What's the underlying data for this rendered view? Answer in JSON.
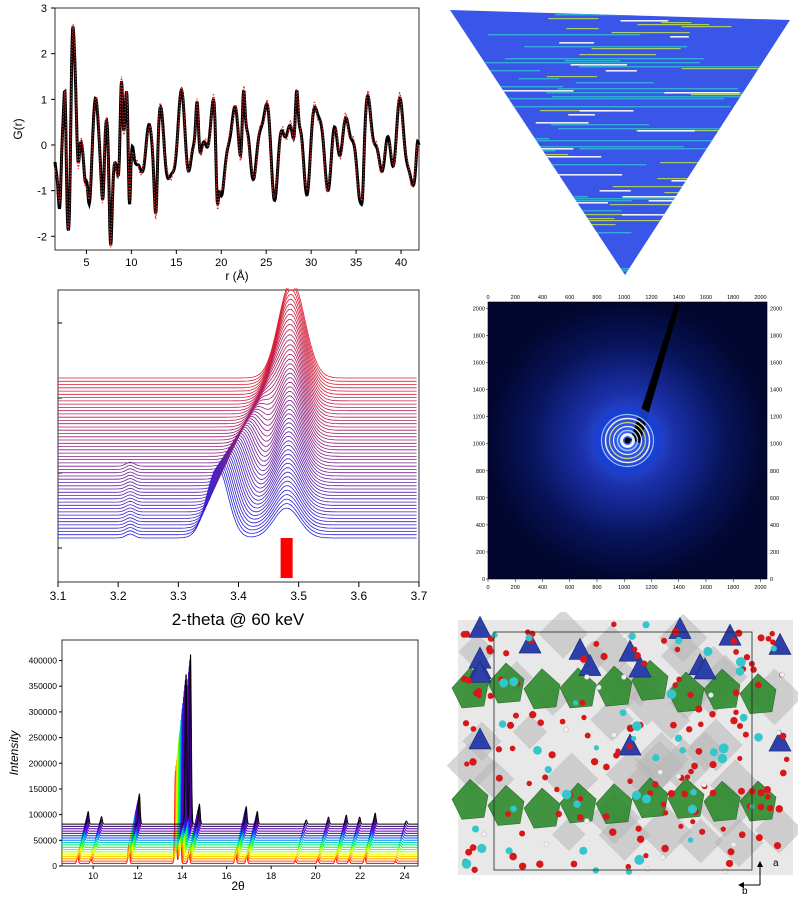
{
  "chart_data": [
    {
      "type": "line",
      "xlabel": "r (Å)",
      "ylabel": "G(r)",
      "xlim": [
        1.5,
        42
      ],
      "ylim": [
        -2.3,
        3
      ],
      "xticks": [
        5,
        10,
        15,
        20,
        25,
        30,
        35,
        40
      ],
      "yticks": [
        -2,
        -1,
        0,
        1,
        2,
        3
      ],
      "grid": false,
      "series": [
        {
          "color": "#000000",
          "style": "thick-line"
        },
        {
          "color": "#d62728",
          "style": "line-with-markers"
        }
      ],
      "key_points": [
        {
          "x": 2.0,
          "y": -1.4
        },
        {
          "x": 2.6,
          "y": 1.3
        },
        {
          "x": 3.0,
          "y": -1.9
        },
        {
          "x": 3.5,
          "y": 2.6
        },
        {
          "x": 4.1,
          "y": -0.4
        },
        {
          "x": 5.0,
          "y": -0.8
        },
        {
          "x": 6.8,
          "y": -1.2
        },
        {
          "x": 7.7,
          "y": -2.2
        },
        {
          "x": 8.9,
          "y": 1.4
        },
        {
          "x": 9.8,
          "y": -1.3
        },
        {
          "x": 12.7,
          "y": -1.5
        },
        {
          "x": 17.3,
          "y": 0.95
        },
        {
          "x": 19.6,
          "y": -1.3
        },
        {
          "x": 22.5,
          "y": 1.2
        },
        {
          "x": 28.4,
          "y": 1.2
        },
        {
          "x": 35.6,
          "y": -1.3
        },
        {
          "x": 42.0,
          "y": 0.0
        }
      ]
    },
    {
      "type": "heatmap",
      "shape": "inverted-triangle",
      "colors": [
        "#2f4fe0",
        "#35b7d6",
        "#c8e84a",
        "#ffffff"
      ]
    },
    {
      "type": "line",
      "xlabel": "2-theta @ 60 keV",
      "xlim": [
        3.1,
        3.7
      ],
      "xticks": [
        3.1,
        3.2,
        3.3,
        3.4,
        3.5,
        3.6,
        3.7
      ],
      "n_curves": 50,
      "color_start": "#2020e0",
      "color_end": "#e02030",
      "marker": {
        "x_from": 3.47,
        "x_to": 3.49,
        "color": "#ff0000"
      }
    },
    {
      "type": "heatmap",
      "xticks": [
        0,
        200,
        400,
        600,
        800,
        1000,
        1200,
        1400,
        1600,
        1800,
        2000
      ],
      "yticks": [
        0,
        200,
        400,
        600,
        800,
        1000,
        1200,
        1400,
        1600,
        1800,
        2000
      ],
      "xlim": [
        0,
        2048
      ],
      "ylim": [
        0,
        2048
      ],
      "center": [
        1024,
        1024
      ]
    },
    {
      "type": "line",
      "xlabel": "2θ",
      "ylabel": "Intensity",
      "xlim": [
        8.6,
        24.6
      ],
      "ylim": [
        0,
        440000
      ],
      "xticks": [
        10,
        12,
        14,
        16,
        18,
        20,
        22,
        24
      ],
      "yticks": [
        0,
        50000,
        100000,
        150000,
        200000,
        250000,
        300000,
        350000,
        400000
      ],
      "ytick_labels": [
        "0",
        "50000",
        "100000",
        "150000",
        "200000",
        "250000",
        "300000",
        "350000",
        "400000"
      ],
      "n_patterns": 18,
      "peaks": [
        {
          "pos": 9.3,
          "height": 25000
        },
        {
          "pos": 9.9,
          "height": 15000
        },
        {
          "pos": 11.6,
          "height": 60000
        },
        {
          "pos": 13.7,
          "height": 300000
        },
        {
          "pos": 13.9,
          "height": 340000
        },
        {
          "pos": 14.3,
          "height": 40000
        },
        {
          "pos": 16.4,
          "height": 35000
        },
        {
          "pos": 16.9,
          "height": 25000
        },
        {
          "pos": 19.1,
          "height": 8000
        },
        {
          "pos": 20.1,
          "height": 14000
        },
        {
          "pos": 20.9,
          "height": 18000
        },
        {
          "pos": 21.5,
          "height": 14000
        },
        {
          "pos": 22.2,
          "height": 22000
        },
        {
          "pos": 23.6,
          "height": 6000
        }
      ]
    },
    {
      "type": "diagram",
      "axes_labels": [
        "a",
        "b"
      ],
      "colors": {
        "octahedra": "#2e8b2e",
        "tetrahedra": "#2d3fa8",
        "oxygen": "#d81818",
        "ion": "#35c6cc",
        "grey": "#b8b8b8"
      }
    }
  ]
}
